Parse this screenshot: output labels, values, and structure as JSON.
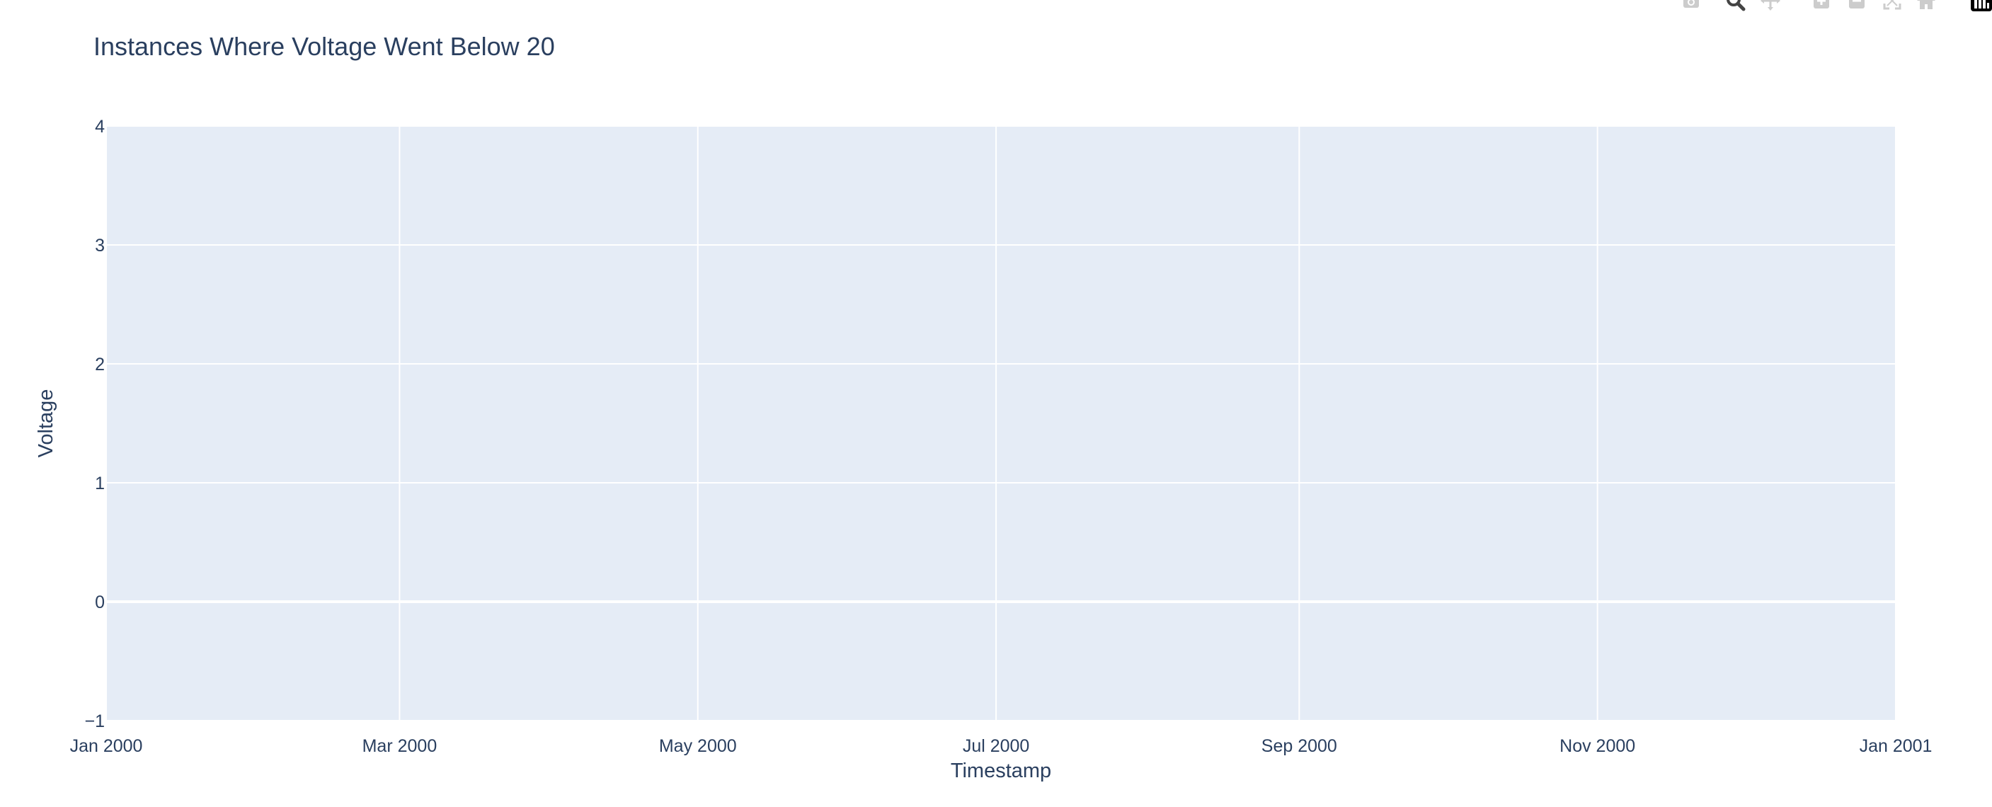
{
  "chart_data": {
    "type": "scatter",
    "title": "Instances Where Voltage Went Below 20",
    "xlabel": "Timestamp",
    "ylabel": "Voltage",
    "x_type": "date",
    "xlim": [
      "2000-01-01",
      "2001-01-01"
    ],
    "ylim": [
      -1,
      4
    ],
    "x_ticks": [
      {
        "value": "2000-01-01",
        "label": "Jan 2000"
      },
      {
        "value": "2000-03-01",
        "label": "Mar 2000"
      },
      {
        "value": "2000-05-01",
        "label": "May 2000"
      },
      {
        "value": "2000-07-01",
        "label": "Jul 2000"
      },
      {
        "value": "2000-09-01",
        "label": "Sep 2000"
      },
      {
        "value": "2000-11-01",
        "label": "Nov 2000"
      },
      {
        "value": "2001-01-01",
        "label": "Jan 2001"
      }
    ],
    "y_ticks": [
      {
        "value": -1,
        "label": "−1"
      },
      {
        "value": 0,
        "label": "0"
      },
      {
        "value": 1,
        "label": "1"
      },
      {
        "value": 2,
        "label": "2"
      },
      {
        "value": 3,
        "label": "3"
      },
      {
        "value": 4,
        "label": "4"
      }
    ],
    "series": [
      {
        "x": [],
        "y": []
      }
    ],
    "grid": true,
    "legend": "none",
    "colors": {
      "plot_background": "#e5ecf6",
      "gridline": "#ffffff",
      "text": "#2a3f5f",
      "tick_text": "#2a3f5f",
      "modebar_icon": "#cccccc",
      "modebar_active": "#444444"
    }
  },
  "modebar": {
    "buttons": [
      {
        "name": "camera-icon",
        "active": false
      },
      {
        "name": "zoom-icon",
        "active": true
      },
      {
        "name": "pan-icon",
        "active": false
      },
      {
        "name": "zoom-in-icon",
        "active": false
      },
      {
        "name": "zoom-out-icon",
        "active": false
      },
      {
        "name": "autoscale-icon",
        "active": false
      },
      {
        "name": "reset-axes-icon",
        "active": false
      },
      {
        "name": "plotly-logo-icon",
        "active": false
      }
    ]
  }
}
